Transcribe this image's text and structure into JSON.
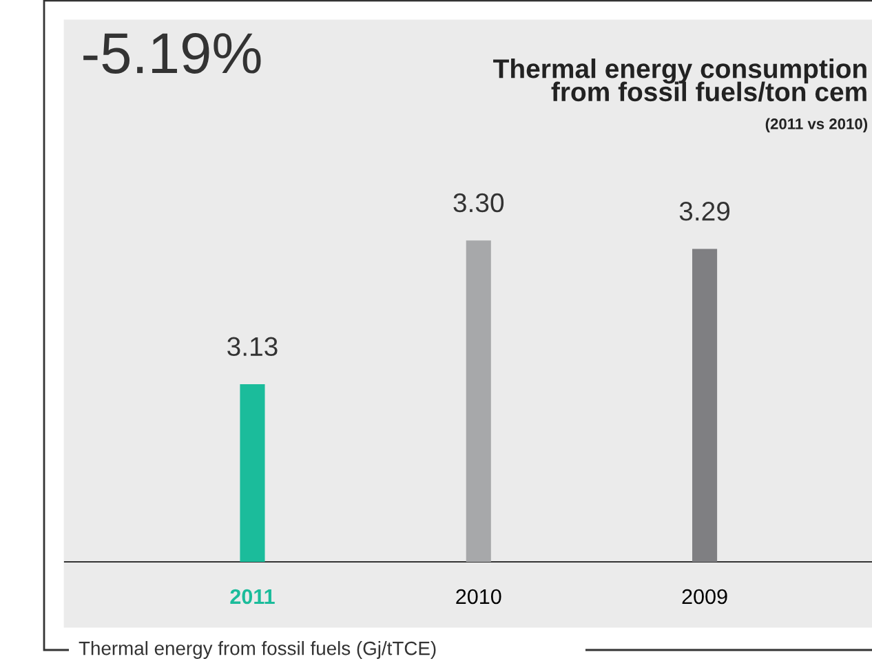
{
  "chart_data": {
    "type": "bar",
    "title": "Thermal energy consumption\nfrom fossil fuels/ton cem",
    "subtitle": "(2011 vs 2010)",
    "categories": [
      "2011",
      "2010",
      "2009"
    ],
    "values": [
      3.13,
      3.3,
      3.29
    ],
    "value_labels": [
      "3.13",
      "3.30",
      "3.29"
    ],
    "colors": [
      "#1bbc9b",
      "#a7a8aa",
      "#7f7f82"
    ],
    "ylim": [
      2.92,
      3.56
    ],
    "data_labels": true,
    "grid": false,
    "legend": false,
    "annotations": [
      "-5.19%",
      "Thermal energy from fossil fuels (Gj/tTCE)"
    ]
  }
}
